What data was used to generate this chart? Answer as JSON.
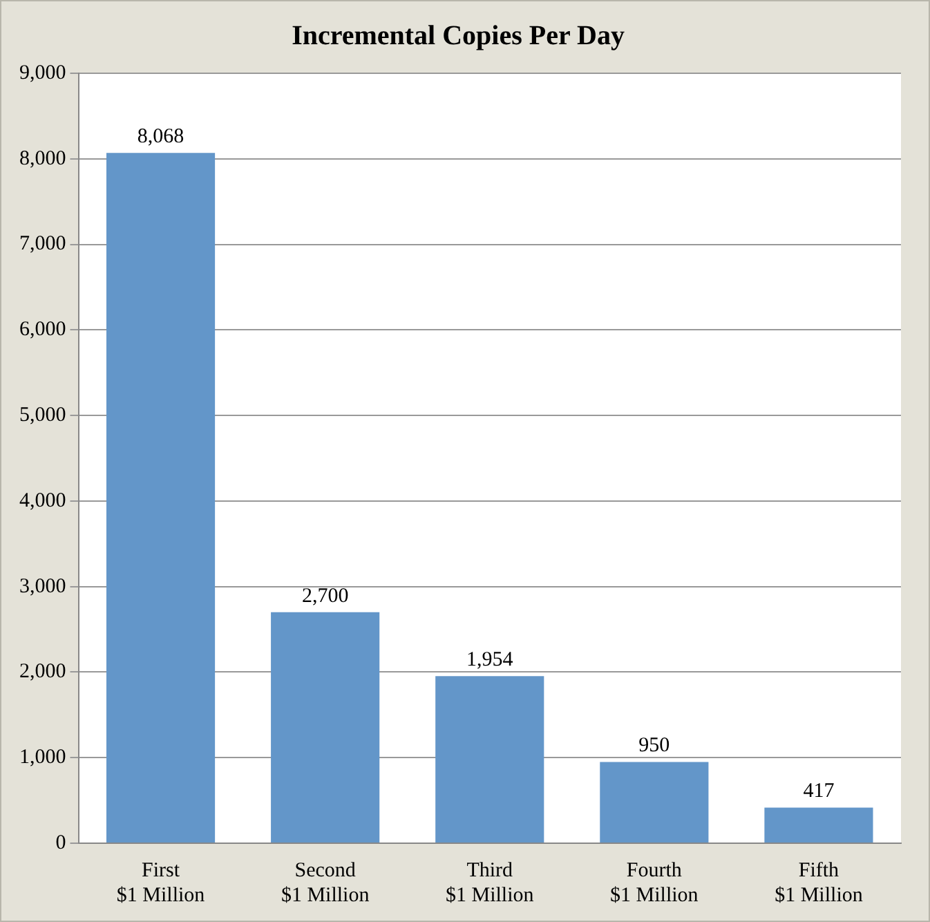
{
  "chart_data": {
    "type": "bar",
    "title": "Incremental Copies Per Day",
    "categories": [
      "First\n$1 Million",
      "Second\n$1 Million",
      "Third\n$1 Million",
      "Fourth\n$1 Million",
      "Fifth\n$1 Million"
    ],
    "values": [
      8068,
      2700,
      1954,
      950,
      417
    ],
    "color": "#6396c9",
    "ylim": [
      0,
      9000
    ],
    "yticks": [
      {
        "value": 0,
        "label": "0"
      },
      {
        "value": 1000,
        "label": "1,000"
      },
      {
        "value": 2000,
        "label": "2,000"
      },
      {
        "value": 3000,
        "label": "3,000"
      },
      {
        "value": 4000,
        "label": "4,000"
      },
      {
        "value": 5000,
        "label": "5,000"
      },
      {
        "value": 6000,
        "label": "6,000"
      },
      {
        "value": 7000,
        "label": "7,000"
      },
      {
        "value": 8000,
        "label": "8,000"
      },
      {
        "value": 9000,
        "label": "9,000"
      }
    ],
    "value_labels": [
      "8,068",
      "2,700",
      "1,954",
      "950",
      "417"
    ],
    "grid": "y",
    "legend": false
  }
}
